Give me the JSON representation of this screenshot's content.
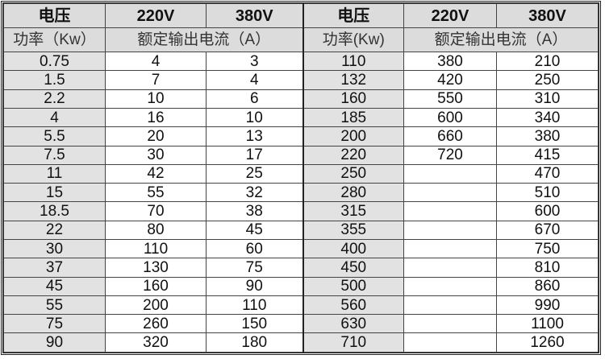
{
  "headers": {
    "voltage": "电压",
    "v220": "220V",
    "v380": "380V",
    "power": "功率（Kw）",
    "power_right": "功率(Kw)",
    "current": "额定输出电流（A）"
  },
  "left_rows": [
    {
      "kw": "0.75",
      "a220": "4",
      "a380": "3"
    },
    {
      "kw": "1.5",
      "a220": "7",
      "a380": "4"
    },
    {
      "kw": "2.2",
      "a220": "10",
      "a380": "6"
    },
    {
      "kw": "4",
      "a220": "16",
      "a380": "10"
    },
    {
      "kw": "5.5",
      "a220": "20",
      "a380": "13"
    },
    {
      "kw": "7.5",
      "a220": "30",
      "a380": "17"
    },
    {
      "kw": "11",
      "a220": "42",
      "a380": "25"
    },
    {
      "kw": "15",
      "a220": "55",
      "a380": "32"
    },
    {
      "kw": "18.5",
      "a220": "70",
      "a380": "38"
    },
    {
      "kw": "22",
      "a220": "80",
      "a380": "45"
    },
    {
      "kw": "30",
      "a220": "110",
      "a380": "60"
    },
    {
      "kw": "37",
      "a220": "130",
      "a380": "75"
    },
    {
      "kw": "45",
      "a220": "160",
      "a380": "90"
    },
    {
      "kw": "55",
      "a220": "200",
      "a380": "110"
    },
    {
      "kw": "75",
      "a220": "260",
      "a380": "150"
    },
    {
      "kw": "90",
      "a220": "320",
      "a380": "180"
    }
  ],
  "right_rows": [
    {
      "kw": "110",
      "a220": "380",
      "a380": "210"
    },
    {
      "kw": "132",
      "a220": "420",
      "a380": "250"
    },
    {
      "kw": "160",
      "a220": "550",
      "a380": "310"
    },
    {
      "kw": "185",
      "a220": "600",
      "a380": "340"
    },
    {
      "kw": "200",
      "a220": "660",
      "a380": "380"
    },
    {
      "kw": "220",
      "a220": "720",
      "a380": "415"
    },
    {
      "kw": "250",
      "a220": "",
      "a380": "470"
    },
    {
      "kw": "280",
      "a220": "",
      "a380": "510"
    },
    {
      "kw": "315",
      "a220": "",
      "a380": "600"
    },
    {
      "kw": "355",
      "a220": "",
      "a380": "670"
    },
    {
      "kw": "400",
      "a220": "",
      "a380": "750"
    },
    {
      "kw": "450",
      "a220": "",
      "a380": "810"
    },
    {
      "kw": "500",
      "a220": "",
      "a380": "860"
    },
    {
      "kw": "560",
      "a220": "",
      "a380": "990"
    },
    {
      "kw": "630",
      "a220": "",
      "a380": "1100"
    },
    {
      "kw": "710",
      "a220": "",
      "a380": "1260"
    }
  ]
}
